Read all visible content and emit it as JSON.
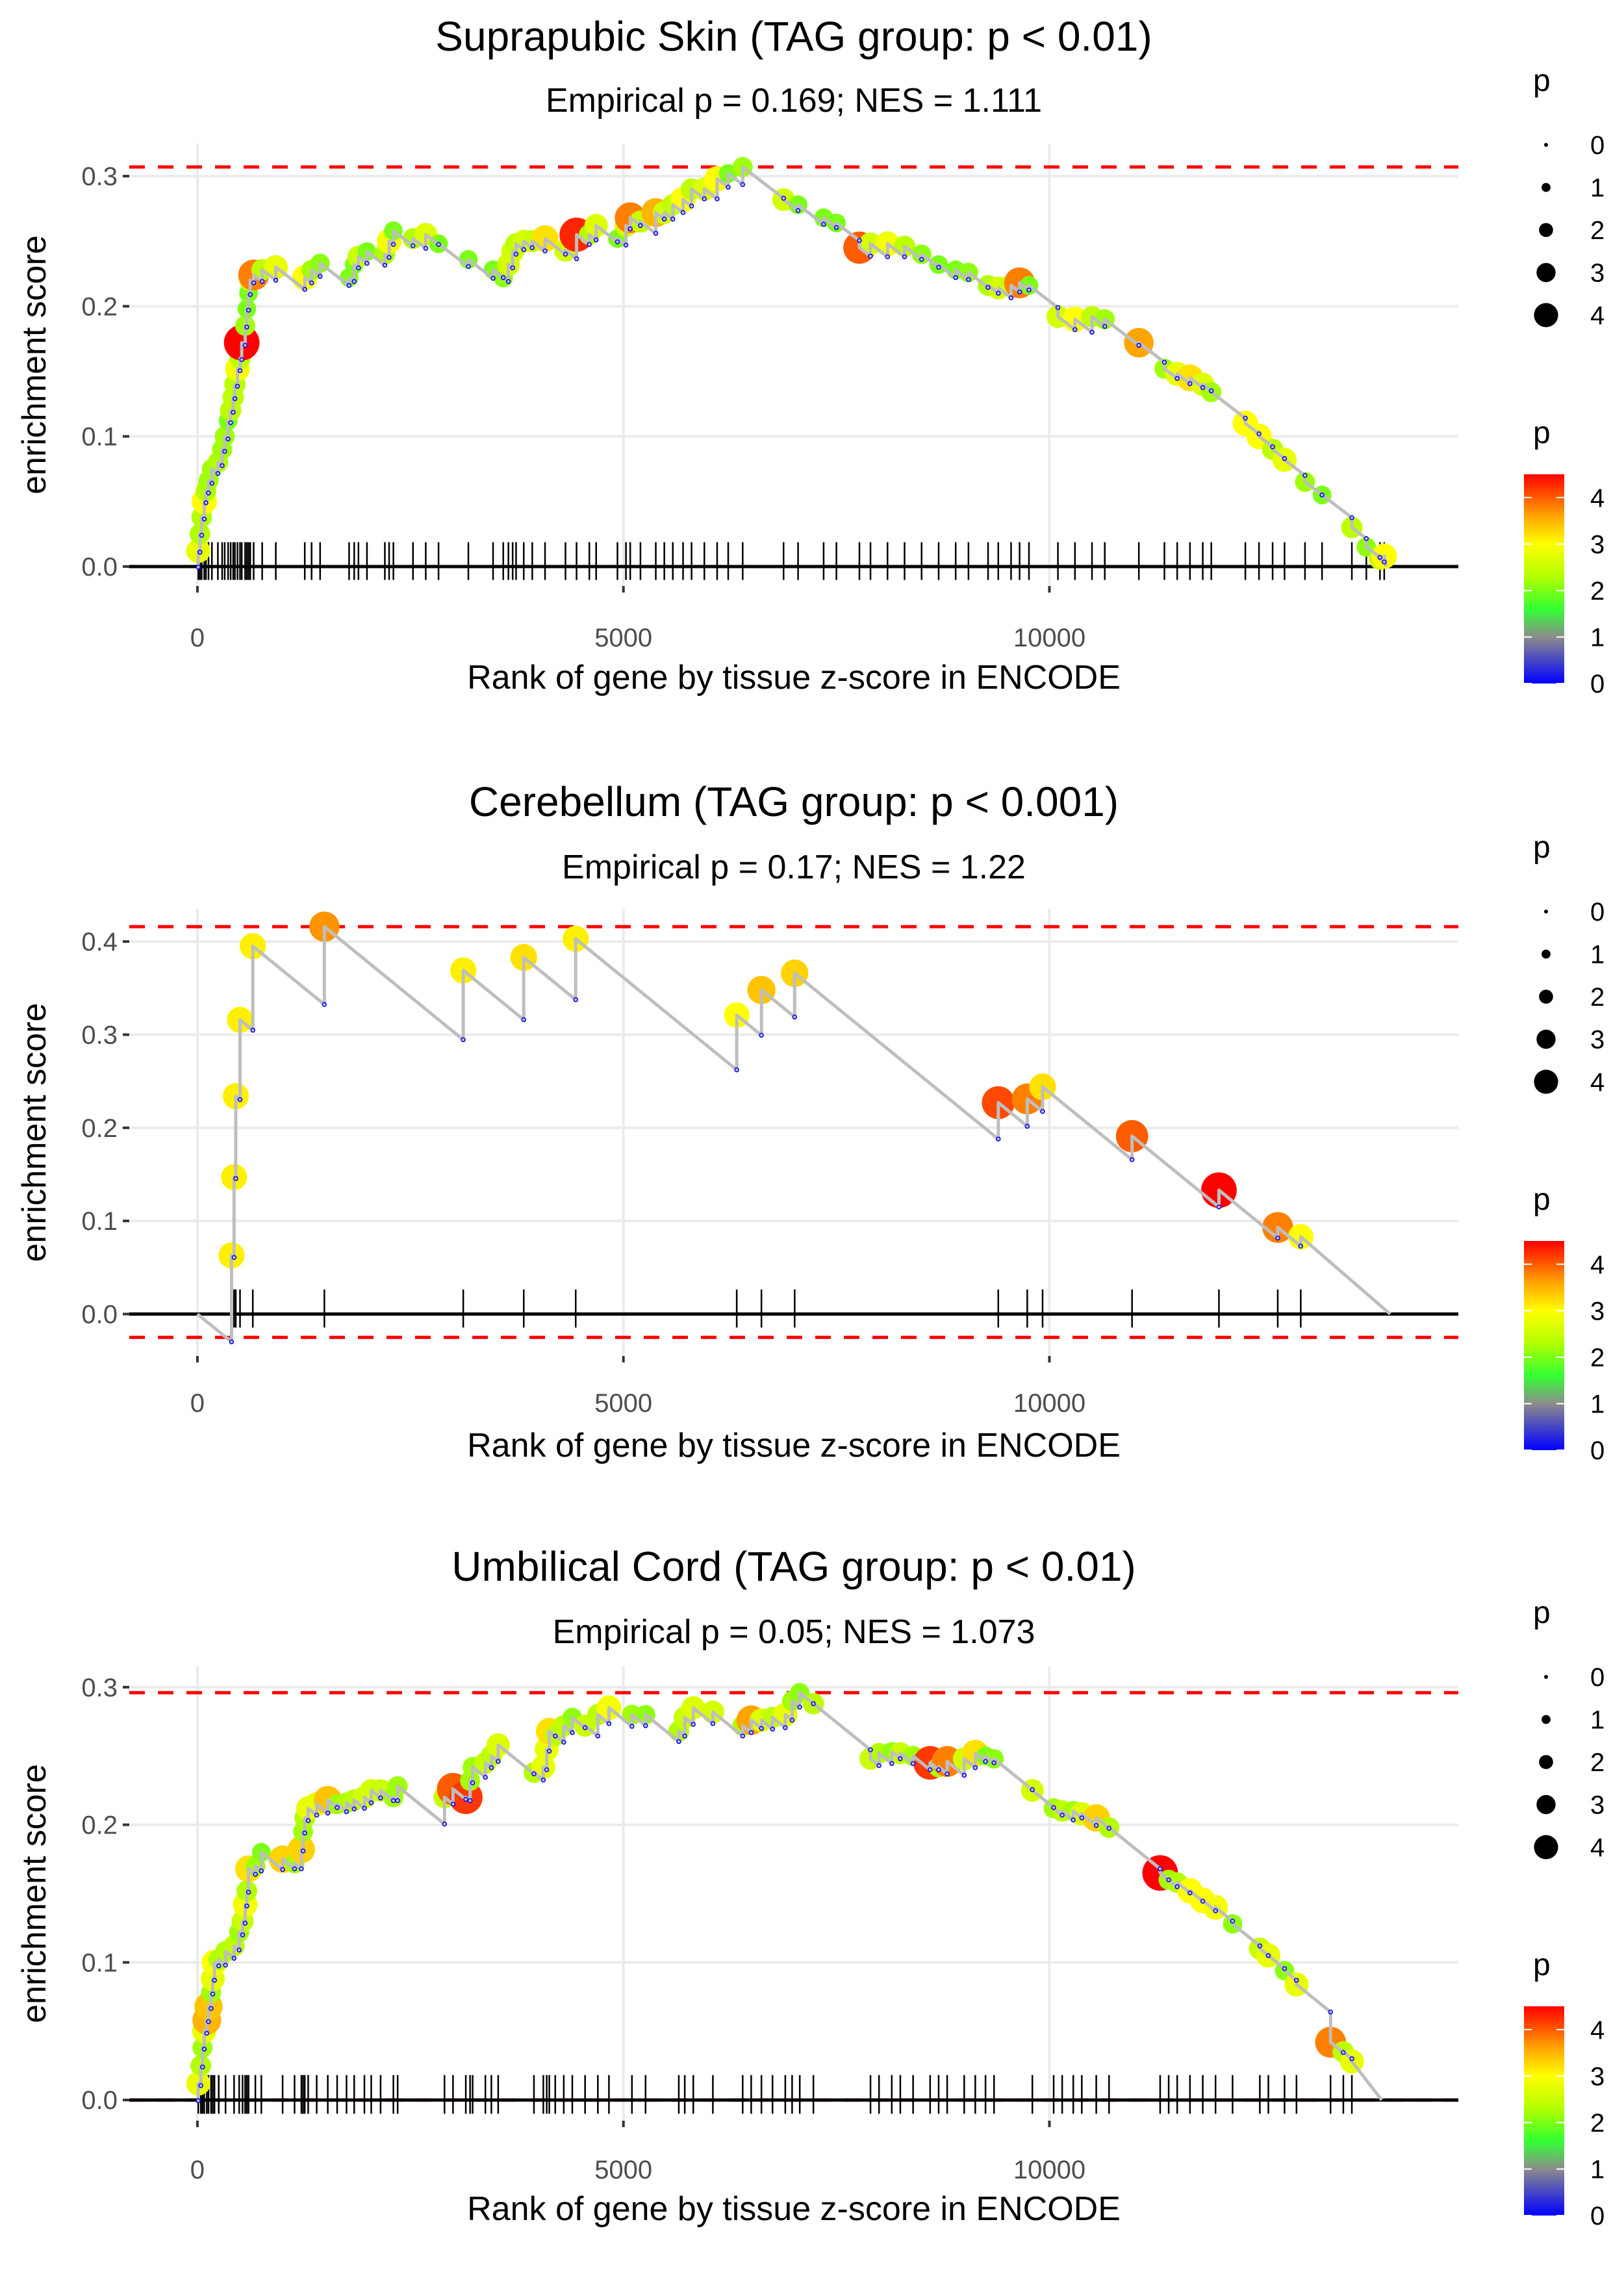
{
  "chart_data": [
    {
      "type": "line",
      "title": "Suprapubic Skin (TAG group: p < 0.01)",
      "subtitle": "Empirical p = 0.169; NES = 1.111",
      "xlabel": "Rank of gene by tissue z-score in ENCODE",
      "ylabel": "enrichment score",
      "xlim": [
        -800,
        14800
      ],
      "ylim": [
        -0.015,
        0.325
      ],
      "xticks": [
        0,
        5000,
        10000
      ],
      "xtick_labels": [
        "0",
        "5000",
        "10000"
      ],
      "yticks": [
        0,
        0.1,
        0.2,
        0.3
      ],
      "ytick_labels": [
        "0.0",
        "0.1",
        "0.2",
        "0.3"
      ],
      "max_es": 0.307,
      "min_es": 0,
      "end_rank": 13950,
      "decline_per_gene": 5e-05,
      "grid": true,
      "hits_columns": [
        "rank",
        "es",
        "p"
      ],
      "hits": [
        [
          10,
          0.012,
          2.8
        ],
        [
          30,
          0.025,
          2.3
        ],
        [
          50,
          0.038,
          2.3
        ],
        [
          80,
          0.05,
          3.0
        ],
        [
          100,
          0.058,
          2.3
        ],
        [
          130,
          0.066,
          2.2
        ],
        [
          170,
          0.075,
          2.2
        ],
        [
          240,
          0.08,
          2.3
        ],
        [
          290,
          0.09,
          2.2
        ],
        [
          320,
          0.1,
          2.2
        ],
        [
          360,
          0.112,
          2.0
        ],
        [
          390,
          0.12,
          2.4
        ],
        [
          420,
          0.13,
          2.4
        ],
        [
          440,
          0.14,
          2.4
        ],
        [
          470,
          0.152,
          2.9
        ],
        [
          500,
          0.16,
          2.4
        ],
        [
          520,
          0.172,
          4.5
        ],
        [
          560,
          0.185,
          2.2
        ],
        [
          580,
          0.198,
          2.0
        ],
        [
          600,
          0.21,
          2.0
        ],
        [
          620,
          0.22,
          2.5
        ],
        [
          660,
          0.224,
          3.8
        ],
        [
          760,
          0.228,
          2.4
        ],
        [
          920,
          0.23,
          2.8
        ],
        [
          1260,
          0.222,
          3.0
        ],
        [
          1340,
          0.228,
          2.2
        ],
        [
          1440,
          0.233,
          2.1
        ],
        [
          1780,
          0.222,
          2.0
        ],
        [
          1840,
          0.232,
          2.0
        ],
        [
          1890,
          0.238,
          2.5
        ],
        [
          1990,
          0.242,
          2.0
        ],
        [
          2200,
          0.24,
          2.3
        ],
        [
          2250,
          0.25,
          2.9
        ],
        [
          2300,
          0.258,
          2.0
        ],
        [
          2530,
          0.252,
          2.3
        ],
        [
          2680,
          0.255,
          2.7
        ],
        [
          2830,
          0.248,
          2.0
        ],
        [
          3180,
          0.236,
          2.0
        ],
        [
          3470,
          0.228,
          2.0
        ],
        [
          3590,
          0.222,
          2.1
        ],
        [
          3650,
          0.232,
          2.6
        ],
        [
          3700,
          0.242,
          2.6
        ],
        [
          3740,
          0.248,
          2.4
        ],
        [
          3830,
          0.25,
          2.6
        ],
        [
          3930,
          0.25,
          2.5
        ],
        [
          4080,
          0.252,
          3.2
        ],
        [
          4320,
          0.243,
          2.6
        ],
        [
          4450,
          0.255,
          4.3
        ],
        [
          4600,
          0.255,
          2.3
        ],
        [
          4680,
          0.262,
          2.7
        ],
        [
          4930,
          0.252,
          2.0
        ],
        [
          5030,
          0.262,
          2.6
        ],
        [
          5080,
          0.268,
          3.8
        ],
        [
          5200,
          0.265,
          2.5
        ],
        [
          5380,
          0.272,
          3.5
        ],
        [
          5480,
          0.272,
          2.6
        ],
        [
          5580,
          0.278,
          2.4
        ],
        [
          5700,
          0.282,
          3.0
        ],
        [
          5800,
          0.29,
          2.4
        ],
        [
          5950,
          0.29,
          2.7
        ],
        [
          6100,
          0.298,
          3.0
        ],
        [
          6230,
          0.302,
          2.0
        ],
        [
          6400,
          0.307,
          2.2
        ],
        [
          6880,
          0.282,
          2.6
        ],
        [
          7050,
          0.278,
          2.0
        ],
        [
          7350,
          0.268,
          2.0
        ],
        [
          7500,
          0.264,
          2.0
        ],
        [
          7770,
          0.245,
          4.0
        ],
        [
          7900,
          0.248,
          2.6
        ],
        [
          8100,
          0.248,
          2.9
        ],
        [
          8300,
          0.246,
          2.4
        ],
        [
          8500,
          0.24,
          2.1
        ],
        [
          8700,
          0.232,
          2.0
        ],
        [
          8900,
          0.228,
          2.0
        ],
        [
          9050,
          0.226,
          2.1
        ],
        [
          9280,
          0.216,
          2.3
        ],
        [
          9400,
          0.214,
          2.6
        ],
        [
          9550,
          0.216,
          2.5
        ],
        [
          9650,
          0.218,
          3.8
        ],
        [
          9760,
          0.216,
          2.0
        ],
        [
          10100,
          0.192,
          2.6
        ],
        [
          10300,
          0.19,
          3.0
        ],
        [
          10500,
          0.192,
          2.4
        ],
        [
          10650,
          0.19,
          2.2
        ],
        [
          11050,
          0.172,
          3.6
        ],
        [
          11350,
          0.152,
          2.2
        ],
        [
          11500,
          0.148,
          2.8
        ],
        [
          11650,
          0.145,
          3.2
        ],
        [
          11800,
          0.14,
          2.7
        ],
        [
          11900,
          0.134,
          2.2
        ],
        [
          12300,
          0.11,
          3.0
        ],
        [
          12460,
          0.1,
          3.0
        ],
        [
          12620,
          0.09,
          2.4
        ],
        [
          12760,
          0.082,
          2.8
        ],
        [
          13000,
          0.065,
          2.2
        ],
        [
          13200,
          0.055,
          2.0
        ],
        [
          13550,
          0.03,
          2.4
        ],
        [
          13720,
          0.015,
          2.1
        ],
        [
          13880,
          0.006,
          2.5
        ],
        [
          13930,
          0.008,
          3.0
        ]
      ]
    },
    {
      "type": "line",
      "title": "Cerebellum (TAG group: p < 0.001)",
      "subtitle": "Empirical p = 0.17; NES = 1.22",
      "xlabel": "Rank of gene by tissue z-score in ENCODE",
      "ylabel": "enrichment score",
      "xlim": [
        -800,
        14800
      ],
      "ylim": [
        -0.045,
        0.435
      ],
      "xticks": [
        0,
        5000,
        10000
      ],
      "xtick_labels": [
        "0",
        "5000",
        "10000"
      ],
      "yticks": [
        0,
        0.1,
        0.2,
        0.3,
        0.4
      ],
      "ytick_labels": [
        "0.0",
        "0.1",
        "0.2",
        "0.3",
        "0.4"
      ],
      "max_es": 0.416,
      "min_es": -0.025,
      "end_rank": 14000,
      "decline_per_gene": 7.45e-05,
      "grid": true,
      "hits_columns": [
        "rank",
        "es",
        "p"
      ],
      "hits": [
        [
          400,
          0.063,
          3.1
        ],
        [
          430,
          0.147,
          3.1
        ],
        [
          450,
          0.234,
          3.1
        ],
        [
          500,
          0.316,
          3.1
        ],
        [
          650,
          0.395,
          3.1
        ],
        [
          1490,
          0.416,
          3.7
        ],
        [
          3120,
          0.369,
          3.1
        ],
        [
          3830,
          0.383,
          3.2
        ],
        [
          4440,
          0.403,
          3.1
        ],
        [
          6330,
          0.321,
          3.0
        ],
        [
          6620,
          0.348,
          3.4
        ],
        [
          7010,
          0.366,
          3.3
        ],
        [
          9400,
          0.227,
          4.1
        ],
        [
          9740,
          0.231,
          3.8
        ],
        [
          9920,
          0.244,
          3.2
        ],
        [
          10970,
          0.191,
          4.0
        ],
        [
          11990,
          0.133,
          4.5
        ],
        [
          12680,
          0.093,
          3.8
        ],
        [
          12950,
          0.083,
          3.0
        ]
      ]
    },
    {
      "type": "line",
      "title": "Umbilical Cord (TAG group: p < 0.01)",
      "subtitle": "Empirical p = 0.05; NES = 1.073",
      "xlabel": "Rank of gene by tissue z-score in ENCODE",
      "ylabel": "enrichment score",
      "xlim": [
        -800,
        14800
      ],
      "ylim": [
        -0.015,
        0.315
      ],
      "xticks": [
        0,
        5000,
        10000
      ],
      "xtick_labels": [
        "0",
        "5000",
        "10000"
      ],
      "yticks": [
        0,
        0.1,
        0.2,
        0.3
      ],
      "ytick_labels": [
        "0.0",
        "0.1",
        "0.2",
        "0.3"
      ],
      "max_es": 0.296,
      "min_es": 0,
      "end_rank": 13900,
      "decline_per_gene": 5e-05,
      "grid": true,
      "hits_columns": [
        "rank",
        "es",
        "p"
      ],
      "hits": [
        [
          10,
          0.012,
          2.8
        ],
        [
          40,
          0.025,
          2.3
        ],
        [
          60,
          0.038,
          2.2
        ],
        [
          80,
          0.05,
          2.8
        ],
        [
          110,
          0.058,
          3.5
        ],
        [
          130,
          0.068,
          3.4
        ],
        [
          160,
          0.078,
          2.2
        ],
        [
          180,
          0.088,
          2.8
        ],
        [
          200,
          0.1,
          3.0
        ],
        [
          250,
          0.102,
          2.3
        ],
        [
          330,
          0.108,
          2.3
        ],
        [
          430,
          0.112,
          2.4
        ],
        [
          490,
          0.122,
          2.2
        ],
        [
          530,
          0.13,
          2.5
        ],
        [
          560,
          0.142,
          2.9
        ],
        [
          580,
          0.152,
          2.3
        ],
        [
          600,
          0.168,
          3.2
        ],
        [
          680,
          0.17,
          2.2
        ],
        [
          750,
          0.18,
          2.0
        ],
        [
          1000,
          0.175,
          3.3
        ],
        [
          1140,
          0.172,
          2.2
        ],
        [
          1220,
          0.182,
          3.3
        ],
        [
          1240,
          0.195,
          2.2
        ],
        [
          1260,
          0.205,
          2.3
        ],
        [
          1300,
          0.212,
          2.8
        ],
        [
          1400,
          0.215,
          2.8
        ],
        [
          1530,
          0.218,
          3.4
        ],
        [
          1640,
          0.215,
          2.2
        ],
        [
          1750,
          0.216,
          2.3
        ],
        [
          1840,
          0.218,
          2.4
        ],
        [
          1960,
          0.22,
          2.6
        ],
        [
          2040,
          0.225,
          2.6
        ],
        [
          2150,
          0.225,
          2.5
        ],
        [
          2300,
          0.22,
          2.2
        ],
        [
          2350,
          0.228,
          2.2
        ],
        [
          2900,
          0.22,
          2.5
        ],
        [
          3000,
          0.226,
          4.0
        ],
        [
          3150,
          0.22,
          4.2
        ],
        [
          3200,
          0.232,
          2.2
        ],
        [
          3230,
          0.242,
          2.2
        ],
        [
          3380,
          0.245,
          2.5
        ],
        [
          3450,
          0.25,
          2.4
        ],
        [
          3530,
          0.258,
          2.7
        ],
        [
          3950,
          0.238,
          2.3
        ],
        [
          4060,
          0.242,
          2.8
        ],
        [
          4100,
          0.255,
          2.8
        ],
        [
          4130,
          0.268,
          3.2
        ],
        [
          4200,
          0.265,
          2.4
        ],
        [
          4300,
          0.272,
          2.4
        ],
        [
          4400,
          0.278,
          2.1
        ],
        [
          4550,
          0.272,
          2.5
        ],
        [
          4700,
          0.28,
          2.4
        ],
        [
          4830,
          0.285,
          2.9
        ],
        [
          5100,
          0.28,
          2.2
        ],
        [
          5260,
          0.28,
          2.1
        ],
        [
          5650,
          0.268,
          2.3
        ],
        [
          5720,
          0.278,
          2.5
        ],
        [
          5820,
          0.285,
          2.7
        ],
        [
          6050,
          0.282,
          2.6
        ],
        [
          6400,
          0.272,
          2.3
        ],
        [
          6500,
          0.276,
          3.6
        ],
        [
          6620,
          0.276,
          2.7
        ],
        [
          6750,
          0.278,
          2.4
        ],
        [
          6900,
          0.28,
          2.8
        ],
        [
          6980,
          0.29,
          2.2
        ],
        [
          7070,
          0.296,
          2.1
        ],
        [
          7230,
          0.288,
          2.4
        ],
        [
          7900,
          0.248,
          2.5
        ],
        [
          8000,
          0.252,
          2.3
        ],
        [
          8150,
          0.253,
          2.1
        ],
        [
          8250,
          0.252,
          2.5
        ],
        [
          8400,
          0.25,
          2.2
        ],
        [
          8600,
          0.245,
          4.2
        ],
        [
          8700,
          0.242,
          2.3
        ],
        [
          8800,
          0.246,
          3.8
        ],
        [
          9000,
          0.248,
          2.6
        ],
        [
          9130,
          0.252,
          3.2
        ],
        [
          9250,
          0.25,
          2.0
        ],
        [
          9350,
          0.248,
          2.1
        ],
        [
          9800,
          0.225,
          2.6
        ],
        [
          10050,
          0.212,
          2.2
        ],
        [
          10150,
          0.21,
          2.4
        ],
        [
          10280,
          0.21,
          2.2
        ],
        [
          10380,
          0.208,
          2.7
        ],
        [
          10550,
          0.205,
          3.3
        ],
        [
          10700,
          0.198,
          2.3
        ],
        [
          11300,
          0.165,
          4.5
        ],
        [
          11400,
          0.16,
          2.2
        ],
        [
          11500,
          0.158,
          2.3
        ],
        [
          11650,
          0.152,
          3.0
        ],
        [
          11800,
          0.145,
          3.0
        ],
        [
          11950,
          0.14,
          2.9
        ],
        [
          12150,
          0.128,
          2.1
        ],
        [
          12470,
          0.11,
          2.5
        ],
        [
          12570,
          0.105,
          2.8
        ],
        [
          12760,
          0.094,
          2.1
        ],
        [
          12900,
          0.084,
          2.8
        ],
        [
          13300,
          0.042,
          3.8
        ],
        [
          13450,
          0.035,
          2.4
        ],
        [
          13550,
          0.028,
          2.8
        ]
      ]
    }
  ],
  "legend": {
    "size_title": "p",
    "size_values": [
      0,
      1,
      2,
      3,
      4
    ],
    "size_labels": [
      "0",
      "1",
      "2",
      "3",
      "4"
    ],
    "color_title": "p",
    "color_range": [
      0,
      4.5
    ],
    "color_ticks": [
      0,
      1,
      2,
      3,
      4
    ],
    "color_labels": [
      "0",
      "1",
      "2",
      "3",
      "4"
    ],
    "color_stops": [
      {
        "value": 0,
        "color": "#0000ff"
      },
      {
        "value": 1,
        "color": "#8c8c8c"
      },
      {
        "value": 1.6,
        "color": "#33ff33"
      },
      {
        "value": 2.3,
        "color": "#b3ff00"
      },
      {
        "value": 3,
        "color": "#ffff00"
      },
      {
        "value": 3.6,
        "color": "#ffa500"
      },
      {
        "value": 4.5,
        "color": "#ff0000"
      }
    ]
  },
  "colors": {
    "running_line": "#bebebe",
    "threshold_line": "#ff0000",
    "zero_line": "#000000",
    "rug": "#000000",
    "grid": "#ebebeb",
    "trough_point": "#0000ff"
  }
}
